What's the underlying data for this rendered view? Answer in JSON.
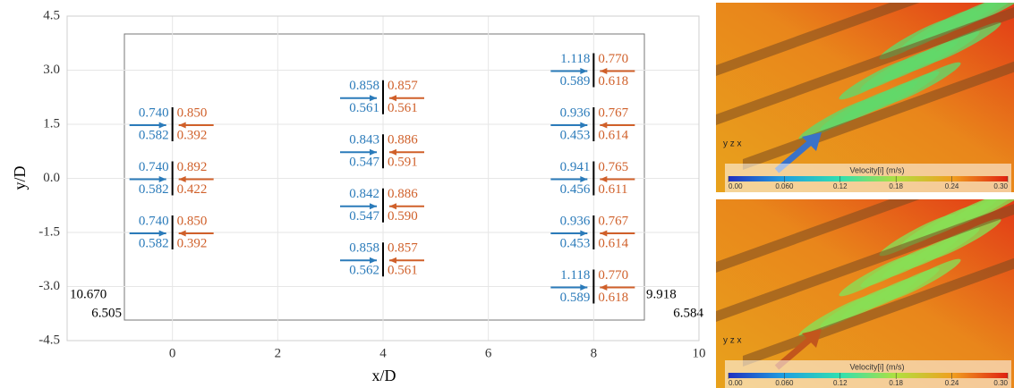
{
  "chart_data": {
    "type": "annotated-layout",
    "xlabel": "x/D",
    "ylabel": "y/D",
    "xlim": [
      -2,
      10
    ],
    "ylim": [
      -4.5,
      4.5
    ],
    "xticks": [
      0,
      2,
      4,
      6,
      8,
      10
    ],
    "yticks": [
      4.5,
      {
        "value": 3,
        "label": "3.0"
      },
      1.5,
      {
        "value": 0,
        "label": "0.0"
      },
      -1.5,
      {
        "value": -3,
        "label": "-3.0"
      },
      -4.5
    ],
    "grid": true,
    "inflow_color": "#2b7bba",
    "outflow_color": "#d0602a",
    "groups": [
      {
        "x": 0,
        "y": 1.5,
        "inflow_top": "0.740",
        "inflow_bottom": "0.582",
        "outflow_top": "0.850",
        "outflow_bottom": "0.392"
      },
      {
        "x": 0,
        "y": 0,
        "inflow_top": "0.740",
        "inflow_bottom": "0.582",
        "outflow_top": "0.892",
        "outflow_bottom": "0.422"
      },
      {
        "x": 0,
        "y": -1.5,
        "inflow_top": "0.740",
        "inflow_bottom": "0.582",
        "outflow_top": "0.850",
        "outflow_bottom": "0.392"
      },
      {
        "x": 4,
        "y": 2.25,
        "inflow_top": "0.858",
        "inflow_bottom": "0.561",
        "outflow_top": "0.857",
        "outflow_bottom": "0.561"
      },
      {
        "x": 4,
        "y": 0.75,
        "inflow_top": "0.843",
        "inflow_bottom": "0.547",
        "outflow_top": "0.886",
        "outflow_bottom": "0.591"
      },
      {
        "x": 4,
        "y": -0.75,
        "inflow_top": "0.842",
        "inflow_bottom": "0.547",
        "outflow_top": "0.886",
        "outflow_bottom": "0.590"
      },
      {
        "x": 4,
        "y": -2.25,
        "inflow_top": "0.858",
        "inflow_bottom": "0.562",
        "outflow_top": "0.857",
        "outflow_bottom": "0.561"
      },
      {
        "x": 8,
        "y": 3,
        "inflow_top": "1.118",
        "inflow_bottom": "0.589",
        "outflow_top": "0.770",
        "outflow_bottom": "0.618"
      },
      {
        "x": 8,
        "y": 1.5,
        "inflow_top": "0.936",
        "inflow_bottom": "0.453",
        "outflow_top": "0.767",
        "outflow_bottom": "0.614"
      },
      {
        "x": 8,
        "y": 0,
        "inflow_top": "0.941",
        "inflow_bottom": "0.456",
        "outflow_top": "0.765",
        "outflow_bottom": "0.611"
      },
      {
        "x": 8,
        "y": -1.5,
        "inflow_top": "0.936",
        "inflow_bottom": "0.453",
        "outflow_top": "0.767",
        "outflow_bottom": "0.614"
      },
      {
        "x": 8,
        "y": -3,
        "inflow_top": "1.118",
        "inflow_bottom": "0.589",
        "outflow_top": "0.770",
        "outflow_bottom": "0.618"
      }
    ],
    "inflow_total": [
      "10.670",
      "6.505"
    ],
    "outflow_total": [
      "9.918",
      "6.584"
    ]
  },
  "panels": [
    {
      "arrow_color": "#3a72c8",
      "axes_label": "y z x",
      "colorbar_label": "Velocity[i] (m/s)",
      "colorbar_range": [
        0,
        0.3
      ],
      "colorbar_ticks": [
        {
          "value": 0,
          "label": "0.00"
        },
        {
          "value": 0.06,
          "label": "0.060"
        },
        {
          "value": 0.12,
          "label": "0.12"
        },
        {
          "value": 0.18,
          "label": "0.18"
        },
        {
          "value": 0.24,
          "label": "0.24"
        },
        {
          "value": 0.3,
          "label": "0.30"
        }
      ]
    },
    {
      "arrow_color": "#c2561c",
      "axes_label": "y z x",
      "colorbar_label": "Velocity[i] (m/s)",
      "colorbar_range": [
        0,
        0.3
      ],
      "colorbar_ticks": [
        {
          "value": 0,
          "label": "0.00"
        },
        {
          "value": 0.06,
          "label": "0.060"
        },
        {
          "value": 0.12,
          "label": "0.12"
        },
        {
          "value": 0.18,
          "label": "0.18"
        },
        {
          "value": 0.24,
          "label": "0.24"
        },
        {
          "value": 0.3,
          "label": "0.30"
        }
      ]
    }
  ]
}
